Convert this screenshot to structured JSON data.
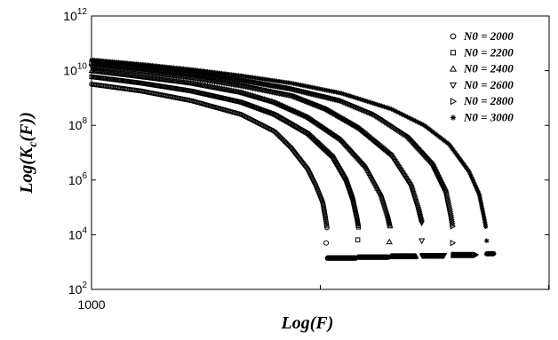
{
  "chart_data": {
    "type": "scatter",
    "title": "",
    "xlabel": "Log(F)",
    "ylabel": "Log(K_c(F))",
    "x_scale": "linear",
    "y_scale": "log",
    "xlim": [
      1000,
      3750
    ],
    "ylim": [
      100,
      1000000000000
    ],
    "x_ticks": [
      {
        "value": 1000,
        "label": "1000"
      }
    ],
    "y_ticks": [
      {
        "exp": 2,
        "base": "10",
        "sup": "2"
      },
      {
        "exp": 4,
        "base": "10",
        "sup": "4"
      },
      {
        "exp": 6,
        "base": "10",
        "sup": "6"
      },
      {
        "exp": 8,
        "base": "10",
        "sup": "8"
      },
      {
        "exp": 10,
        "base": "10",
        "sup": "10"
      },
      {
        "exp": 12,
        "base": "10",
        "sup": "12"
      }
    ],
    "grid": false,
    "legend_position": "top-right",
    "series": [
      {
        "name": "N0 = 2000",
        "marker": "circle",
        "points": [
          [
            1000,
            3200000000.0
          ],
          [
            1300,
            1800000000.0
          ],
          [
            1600,
            800000000.0
          ],
          [
            1900,
            250000000.0
          ],
          [
            2100,
            60000000.0
          ],
          [
            2200,
            15000000.0
          ],
          [
            2300,
            2500000.0
          ],
          [
            2350,
            600000.0
          ],
          [
            2390,
            150000.0
          ],
          [
            2405,
            45000.0
          ],
          [
            2415,
            18000.0
          ]
        ],
        "tail_x": [
          2417,
          2590
        ],
        "tail_y": 1400,
        "isolated": [
          2410,
          5000
        ]
      },
      {
        "name": "N0 = 2200",
        "marker": "square",
        "points": [
          [
            1000,
            6000000000.0
          ],
          [
            1300,
            3500000000.0
          ],
          [
            1600,
            1800000000.0
          ],
          [
            1900,
            700000000.0
          ],
          [
            2100,
            250000000.0
          ],
          [
            2300,
            50000000.0
          ],
          [
            2450,
            7000000.0
          ],
          [
            2530,
            1000000.0
          ],
          [
            2570,
            200000.0
          ],
          [
            2595,
            40000.0
          ],
          [
            2605,
            18000.0
          ]
        ],
        "tail_x": [
          2607,
          2780
        ],
        "tail_y": 1500,
        "isolated": [
          2600,
          6500
        ]
      },
      {
        "name": "N0 = 2400",
        "marker": "triangle-up",
        "points": [
          [
            1000,
            10000000000.0
          ],
          [
            1300,
            6000000000.0
          ],
          [
            1600,
            3500000000.0
          ],
          [
            1900,
            1600000000.0
          ],
          [
            2100,
            700000000.0
          ],
          [
            2300,
            200000000.0
          ],
          [
            2500,
            30000000.0
          ],
          [
            2650,
            3000000.0
          ],
          [
            2740,
            300000.0
          ],
          [
            2780,
            50000.0
          ],
          [
            2795,
            20000.0
          ]
        ],
        "tail_x": [
          2797,
          2950
        ],
        "tail_y": 1600,
        "isolated": [
          2790,
          5500
        ]
      },
      {
        "name": "N0 = 2600",
        "marker": "triangle-down",
        "points": [
          [
            1000,
            14000000000.0
          ],
          [
            1300,
            9000000000.0
          ],
          [
            1600,
            5500000000.0
          ],
          [
            1900,
            2800000000.0
          ],
          [
            2200,
            1200000000.0
          ],
          [
            2400,
            400000000.0
          ],
          [
            2600,
            80000000.0
          ],
          [
            2800,
            8000000.0
          ],
          [
            2920,
            600000.0
          ],
          [
            2965,
            80000.0
          ],
          [
            2985,
            25000.0
          ]
        ],
        "tail_x": [
          2987,
          3120
        ],
        "tail_y": 1700,
        "isolated": [
          2985,
          6000
        ]
      },
      {
        "name": "N0 = 2800",
        "marker": "triangle-right",
        "points": [
          [
            1000,
            19000000000.0
          ],
          [
            1300,
            13000000000.0
          ],
          [
            1600,
            8000000000.0
          ],
          [
            1900,
            4500000000.0
          ],
          [
            2200,
            2200000000.0
          ],
          [
            2500,
            800000000.0
          ],
          [
            2700,
            250000000.0
          ],
          [
            2900,
            40000000.0
          ],
          [
            3050,
            4000000.0
          ],
          [
            3130,
            400000.0
          ],
          [
            3160,
            50000.0
          ],
          [
            3170,
            20000.0
          ]
        ],
        "tail_x": [
          3172,
          3310
        ],
        "tail_y": 1800,
        "isolated": [
          3170,
          5000
        ]
      },
      {
        "name": "N0 = 3000",
        "marker": "star",
        "points": [
          [
            1000,
            25000000000.0
          ],
          [
            1300,
            17000000000.0
          ],
          [
            1600,
            11000000000.0
          ],
          [
            1900,
            6500000000.0
          ],
          [
            2200,
            3500000000.0
          ],
          [
            2500,
            1500000000.0
          ],
          [
            2800,
            400000000.0
          ],
          [
            3000,
            100000000.0
          ],
          [
            3150,
            20000000.0
          ],
          [
            3270,
            2000000.0
          ],
          [
            3330,
            300000.0
          ],
          [
            3360,
            40000.0
          ],
          [
            3370,
            18000.0
          ]
        ],
        "tail_x": [
          3372,
          3420
        ],
        "tail_y": 2000,
        "isolated": [
          3375,
          6000
        ]
      }
    ]
  }
}
